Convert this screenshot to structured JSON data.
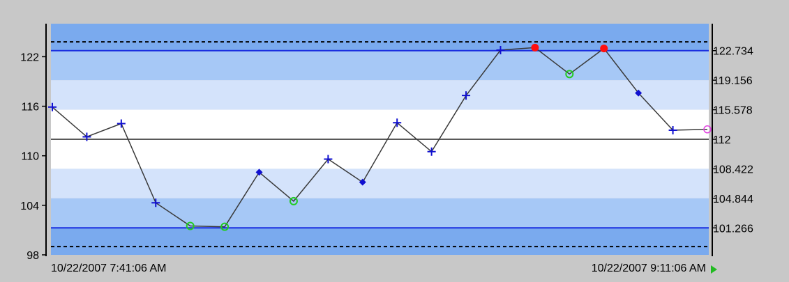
{
  "chart_data": {
    "type": "line",
    "title": "",
    "xlabel": "",
    "ylabel": "",
    "x_start_label": "10/22/2007 7:41:06 AM",
    "x_end_label": "10/22/2007 9:11:06 AM",
    "ylim": [
      98,
      126
    ],
    "left_ticks": [
      98,
      104,
      110,
      116,
      122
    ],
    "right_ticks": [
      "101.266",
      "104.844",
      "108.422",
      "112",
      "115.578",
      "119.156",
      "122.734"
    ],
    "center_line": 112,
    "control_limits": {
      "upper": 122.734,
      "lower": 101.266
    },
    "spec_limits": {
      "upper": 123.8,
      "lower": 99.0
    },
    "zones": [
      {
        "from": 122.734,
        "to": 126,
        "color": "#7aaaee"
      },
      {
        "from": 119.156,
        "to": 122.734,
        "color": "#a6c8f6"
      },
      {
        "from": 115.578,
        "to": 119.156,
        "color": "#d4e3fb"
      },
      {
        "from": 108.422,
        "to": 115.578,
        "color": "#ffffff"
      },
      {
        "from": 104.844,
        "to": 108.422,
        "color": "#d4e3fb"
      },
      {
        "from": 101.266,
        "to": 104.844,
        "color": "#a6c8f6"
      },
      {
        "from": 98,
        "to": 101.266,
        "color": "#7aaaee"
      }
    ],
    "colors": {
      "line": "#3a3a3a",
      "control_line": "#1a2fe0",
      "center_line": "#222222",
      "marker_normal": "#1010d0",
      "marker_alarm": "#ff1010",
      "marker_ok": "#22cc22",
      "marker_last": "#e040e0",
      "arrow": "#22bb22"
    },
    "series": [
      {
        "values": [
          115.9,
          112.3,
          113.9,
          104.3,
          101.5,
          101.4,
          108.0,
          104.5,
          109.6,
          106.8,
          114.0,
          110.5,
          117.3,
          122.8,
          123.1,
          119.9,
          123.0,
          117.6,
          113.1,
          113.2
        ],
        "markers": [
          "plus",
          "plus",
          "plus",
          "plus",
          "circle-ok",
          "circle-ok",
          "diamond",
          "circle-ok",
          "plus",
          "diamond",
          "plus",
          "plus",
          "plus",
          "plus",
          "dot-alarm",
          "circle-ok",
          "dot-alarm",
          "diamond",
          "plus",
          "circle-last"
        ]
      }
    ]
  }
}
